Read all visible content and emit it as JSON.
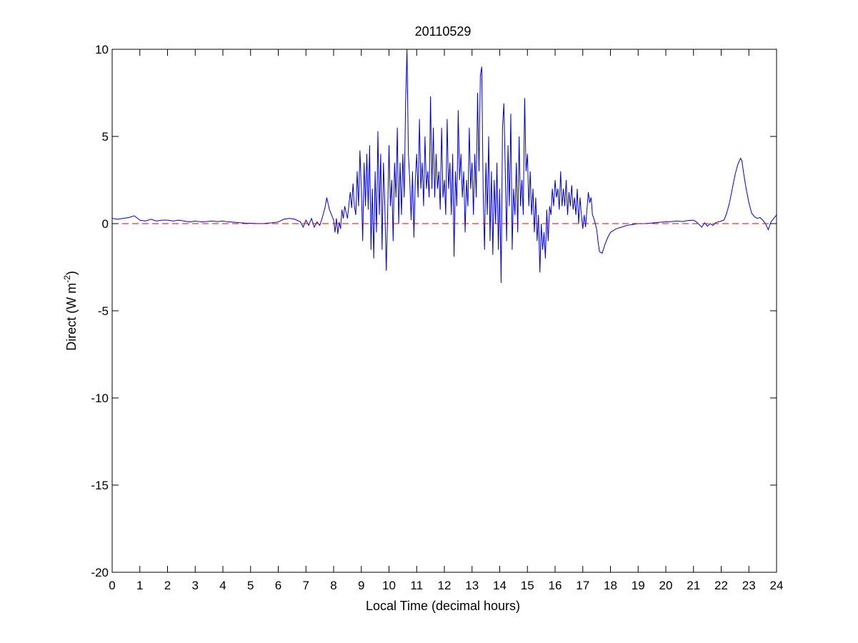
{
  "chart_data": {
    "type": "line",
    "title": "20110529",
    "xlabel": "Local Time (decimal hours)",
    "ylabel": {
      "prefix": "Direct (W m",
      "superscript": "-2",
      "suffix": ")"
    },
    "xlim": [
      0,
      24
    ],
    "ylim": [
      -20,
      10
    ],
    "xticks": [
      "0",
      "1",
      "2",
      "3",
      "4",
      "5",
      "6",
      "7",
      "8",
      "9",
      "10",
      "11",
      "12",
      "13",
      "14",
      "15",
      "16",
      "17",
      "18",
      "19",
      "20",
      "21",
      "22",
      "23",
      "24"
    ],
    "yticks": [
      "10",
      "5",
      "0",
      "-5",
      "-10",
      "-15",
      "-20"
    ],
    "grid": false,
    "series": [
      {
        "color": "#0000cc",
        "style": "solid",
        "points": [
          [
            0.0,
            0.3
          ],
          [
            0.2,
            0.25
          ],
          [
            0.4,
            0.3
          ],
          [
            0.6,
            0.35
          ],
          [
            0.8,
            0.45
          ],
          [
            1.0,
            0.2
          ],
          [
            1.2,
            0.15
          ],
          [
            1.4,
            0.25
          ],
          [
            1.6,
            0.15
          ],
          [
            1.8,
            0.2
          ],
          [
            2.0,
            0.2
          ],
          [
            2.2,
            0.15
          ],
          [
            2.4,
            0.2
          ],
          [
            2.6,
            0.15
          ],
          [
            2.8,
            0.1
          ],
          [
            3.0,
            0.15
          ],
          [
            3.2,
            0.1
          ],
          [
            3.4,
            0.12
          ],
          [
            3.6,
            0.15
          ],
          [
            3.8,
            0.12
          ],
          [
            4.0,
            0.15
          ],
          [
            4.2,
            0.1
          ],
          [
            4.4,
            0.08
          ],
          [
            4.6,
            0.05
          ],
          [
            4.8,
            0.03
          ],
          [
            5.0,
            0.02
          ],
          [
            5.4,
            0.0
          ],
          [
            5.8,
            0.05
          ],
          [
            6.0,
            0.1
          ],
          [
            6.2,
            0.25
          ],
          [
            6.4,
            0.3
          ],
          [
            6.6,
            0.25
          ],
          [
            6.8,
            0.1
          ],
          [
            6.9,
            -0.2
          ],
          [
            7.0,
            0.2
          ],
          [
            7.1,
            -0.1
          ],
          [
            7.2,
            0.3
          ],
          [
            7.3,
            -0.2
          ],
          [
            7.4,
            0.1
          ],
          [
            7.5,
            -0.1
          ],
          [
            7.6,
            0.4
          ],
          [
            7.7,
            1.0
          ],
          [
            7.75,
            1.5
          ],
          [
            7.85,
            0.8
          ],
          [
            8.0,
            0.2
          ],
          [
            8.05,
            -0.5
          ],
          [
            8.1,
            0.3
          ],
          [
            8.15,
            -0.6
          ],
          [
            8.2,
            0.1
          ],
          [
            8.25,
            -0.3
          ],
          [
            8.3,
            0.8
          ],
          [
            8.35,
            0.3
          ],
          [
            8.4,
            1.0
          ],
          [
            8.5,
            0.3
          ],
          [
            8.6,
            1.8
          ],
          [
            8.65,
            0.9
          ],
          [
            8.7,
            2.3
          ],
          [
            8.75,
            1.0
          ],
          [
            8.8,
            0.5
          ],
          [
            8.85,
            3.0
          ],
          [
            8.9,
            1.0
          ],
          [
            8.95,
            4.2
          ],
          [
            9.0,
            2.0
          ],
          [
            9.05,
            -1.0
          ],
          [
            9.1,
            3.5
          ],
          [
            9.15,
            1.0
          ],
          [
            9.2,
            4.0
          ],
          [
            9.25,
            0.8
          ],
          [
            9.3,
            4.5
          ],
          [
            9.35,
            -1.5
          ],
          [
            9.4,
            2.0
          ],
          [
            9.45,
            -2.0
          ],
          [
            9.5,
            3.0
          ],
          [
            9.55,
            -0.5
          ],
          [
            9.6,
            5.3
          ],
          [
            9.65,
            0.5
          ],
          [
            9.7,
            4.0
          ],
          [
            9.75,
            -1.5
          ],
          [
            9.8,
            3.5
          ],
          [
            9.85,
            1.0
          ],
          [
            9.9,
            -2.7
          ],
          [
            9.95,
            0.5
          ],
          [
            10.0,
            4.5
          ],
          [
            10.05,
            1.0
          ],
          [
            10.1,
            2.5
          ],
          [
            10.15,
            -1.0
          ],
          [
            10.2,
            3.5
          ],
          [
            10.25,
            1.5
          ],
          [
            10.3,
            5.5
          ],
          [
            10.35,
            0.0
          ],
          [
            10.4,
            3.5
          ],
          [
            10.45,
            0.5
          ],
          [
            10.5,
            4.0
          ],
          [
            10.55,
            1.5
          ],
          [
            10.6,
            7.0
          ],
          [
            10.65,
            10.0
          ],
          [
            10.7,
            4.0
          ],
          [
            10.75,
            2.5
          ],
          [
            10.8,
            0.2
          ],
          [
            10.85,
            3.0
          ],
          [
            10.9,
            -0.8
          ],
          [
            10.95,
            2.5
          ],
          [
            11.0,
            4.0
          ],
          [
            11.05,
            1.5
          ],
          [
            11.1,
            6.0
          ],
          [
            11.15,
            2.0
          ],
          [
            11.2,
            3.5
          ],
          [
            11.25,
            1.0
          ],
          [
            11.3,
            5.0
          ],
          [
            11.35,
            2.0
          ],
          [
            11.4,
            3.0
          ],
          [
            11.45,
            1.5
          ],
          [
            11.5,
            7.3
          ],
          [
            11.55,
            2.0
          ],
          [
            11.6,
            5.5
          ],
          [
            11.65,
            1.5
          ],
          [
            11.7,
            4.0
          ],
          [
            11.75,
            2.0
          ],
          [
            11.8,
            3.0
          ],
          [
            11.85,
            0.8
          ],
          [
            11.9,
            5.5
          ],
          [
            11.95,
            1.5
          ],
          [
            12.0,
            2.5
          ],
          [
            12.05,
            0.5
          ],
          [
            12.1,
            6.0
          ],
          [
            12.15,
            2.0
          ],
          [
            12.2,
            3.5
          ],
          [
            12.25,
            0.5
          ],
          [
            12.3,
            4.0
          ],
          [
            12.35,
            -1.9
          ],
          [
            12.4,
            3.0
          ],
          [
            12.45,
            1.0
          ],
          [
            12.5,
            6.5
          ],
          [
            12.55,
            2.5
          ],
          [
            12.6,
            4.0
          ],
          [
            12.65,
            1.5
          ],
          [
            12.7,
            3.0
          ],
          [
            12.75,
            -0.5
          ],
          [
            12.8,
            2.5
          ],
          [
            12.85,
            1.0
          ],
          [
            12.9,
            5.5
          ],
          [
            12.95,
            2.0
          ],
          [
            13.0,
            3.5
          ],
          [
            13.05,
            0.5
          ],
          [
            13.1,
            4.0
          ],
          [
            13.15,
            1.5
          ],
          [
            13.2,
            7.5
          ],
          [
            13.25,
            3.0
          ],
          [
            13.3,
            8.5
          ],
          [
            13.35,
            9.0
          ],
          [
            13.4,
            2.0
          ],
          [
            13.45,
            -1.5
          ],
          [
            13.5,
            3.5
          ],
          [
            13.55,
            0.5
          ],
          [
            13.6,
            5.0
          ],
          [
            13.65,
            -1.0
          ],
          [
            13.7,
            3.0
          ],
          [
            13.75,
            -1.8
          ],
          [
            13.8,
            2.5
          ],
          [
            13.85,
            0.0
          ],
          [
            13.9,
            3.5
          ],
          [
            13.95,
            -1.5
          ],
          [
            14.0,
            2.0
          ],
          [
            14.05,
            -3.4
          ],
          [
            14.1,
            5.5
          ],
          [
            14.15,
            6.9
          ],
          [
            14.2,
            3.0
          ],
          [
            14.25,
            -1.0
          ],
          [
            14.3,
            4.5
          ],
          [
            14.35,
            1.0
          ],
          [
            14.4,
            6.3
          ],
          [
            14.45,
            -1.5
          ],
          [
            14.5,
            2.0
          ],
          [
            14.55,
            0.5
          ],
          [
            14.6,
            3.5
          ],
          [
            14.65,
            -0.5
          ],
          [
            14.7,
            5.0
          ],
          [
            14.75,
            1.0
          ],
          [
            14.8,
            2.5
          ],
          [
            14.85,
            0.5
          ],
          [
            14.9,
            7.2
          ],
          [
            14.95,
            3.0
          ],
          [
            15.0,
            4.0
          ],
          [
            15.05,
            1.0
          ],
          [
            15.1,
            3.0
          ],
          [
            15.15,
            0.5
          ],
          [
            15.2,
            2.0
          ],
          [
            15.25,
            -0.5
          ],
          [
            15.3,
            1.5
          ],
          [
            15.35,
            -1.0
          ],
          [
            15.4,
            0.5
          ],
          [
            15.45,
            -2.8
          ],
          [
            15.5,
            0.0
          ],
          [
            15.55,
            -1.5
          ],
          [
            15.6,
            -0.5
          ],
          [
            15.65,
            -2.0
          ],
          [
            15.7,
            0.8
          ],
          [
            15.75,
            -1.0
          ],
          [
            15.8,
            1.0
          ],
          [
            15.85,
            0.5
          ],
          [
            15.9,
            2.0
          ],
          [
            15.95,
            1.0
          ],
          [
            16.0,
            2.5
          ],
          [
            16.05,
            1.5
          ],
          [
            16.1,
            2.0
          ],
          [
            16.15,
            0.8
          ],
          [
            16.2,
            3.0
          ],
          [
            16.25,
            1.0
          ],
          [
            16.3,
            2.0
          ],
          [
            16.35,
            1.0
          ],
          [
            16.4,
            2.5
          ],
          [
            16.45,
            0.5
          ],
          [
            16.5,
            1.8
          ],
          [
            16.55,
            1.0
          ],
          [
            16.6,
            2.2
          ],
          [
            16.65,
            0.8
          ],
          [
            16.7,
            1.5
          ],
          [
            16.75,
            0.5
          ],
          [
            16.8,
            2.0
          ],
          [
            16.85,
            0.0
          ],
          [
            16.9,
            1.5
          ],
          [
            16.95,
            0.5
          ],
          [
            17.0,
            -0.3
          ],
          [
            17.05,
            0.5
          ],
          [
            17.1,
            -0.2
          ],
          [
            17.15,
            0.8
          ],
          [
            17.2,
            1.8
          ],
          [
            17.25,
            1.2
          ],
          [
            17.3,
            1.5
          ],
          [
            17.35,
            0.5
          ],
          [
            17.4,
            0.3
          ],
          [
            17.5,
            -0.3
          ],
          [
            17.55,
            -1.0
          ],
          [
            17.6,
            -1.6
          ],
          [
            17.7,
            -1.7
          ],
          [
            17.8,
            -1.2
          ],
          [
            17.9,
            -0.8
          ],
          [
            18.0,
            -0.5
          ],
          [
            18.2,
            -0.3
          ],
          [
            18.4,
            -0.2
          ],
          [
            18.6,
            -0.1
          ],
          [
            18.8,
            -0.05
          ],
          [
            19.0,
            0.0
          ],
          [
            19.2,
            0.0
          ],
          [
            19.4,
            0.02
          ],
          [
            19.6,
            0.05
          ],
          [
            19.8,
            0.08
          ],
          [
            20.0,
            0.1
          ],
          [
            20.2,
            0.12
          ],
          [
            20.4,
            0.15
          ],
          [
            20.6,
            0.12
          ],
          [
            20.8,
            0.18
          ],
          [
            21.0,
            0.2
          ],
          [
            21.1,
            0.1
          ],
          [
            21.2,
            -0.05
          ],
          [
            21.3,
            -0.2
          ],
          [
            21.4,
            0.05
          ],
          [
            21.5,
            -0.15
          ],
          [
            21.6,
            0.0
          ],
          [
            21.7,
            -0.1
          ],
          [
            21.8,
            0.05
          ],
          [
            21.9,
            0.1
          ],
          [
            22.0,
            0.15
          ],
          [
            22.1,
            0.2
          ],
          [
            22.2,
            0.6
          ],
          [
            22.3,
            1.2
          ],
          [
            22.4,
            2.0
          ],
          [
            22.5,
            2.8
          ],
          [
            22.6,
            3.4
          ],
          [
            22.7,
            3.75
          ],
          [
            22.75,
            3.6
          ],
          [
            22.8,
            3.0
          ],
          [
            22.9,
            2.0
          ],
          [
            23.0,
            1.2
          ],
          [
            23.1,
            0.6
          ],
          [
            23.2,
            0.4
          ],
          [
            23.3,
            0.3
          ],
          [
            23.4,
            0.35
          ],
          [
            23.5,
            0.2
          ],
          [
            23.6,
            0.0
          ],
          [
            23.7,
            -0.35
          ],
          [
            23.8,
            0.1
          ],
          [
            23.9,
            0.3
          ],
          [
            24.0,
            0.5
          ]
        ]
      },
      {
        "color": "#dd0000",
        "style": "dashed",
        "points": [
          [
            0,
            0
          ],
          [
            24,
            0
          ]
        ]
      }
    ]
  }
}
